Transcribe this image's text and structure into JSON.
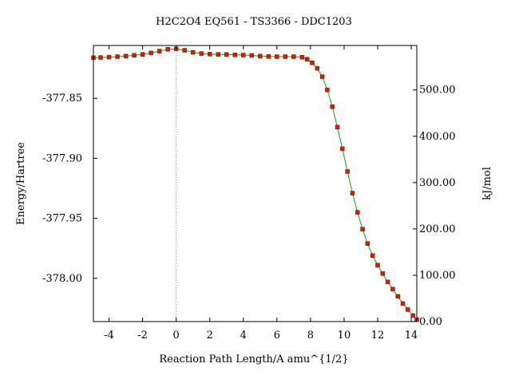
{
  "chart_data": {
    "type": "line",
    "title": "H2C2O4    EQ561 - TS3366 - DDC1203",
    "xlabel": "Reaction Path Length/A amu^{1/2}",
    "ylabel": "Energy/Hartree",
    "y2label": "kJ/mol",
    "xlim": [
      -4.93,
      14.33
    ],
    "ylim": [
      -378.036,
      -377.806
    ],
    "y2lim": [
      0,
      596
    ],
    "x_ticks": [
      -4,
      -2,
      0,
      2,
      4,
      6,
      8,
      10,
      12,
      14
    ],
    "x_tick_labels": [
      "-4",
      "-2",
      "0",
      "2",
      "4",
      "6",
      "8",
      "10",
      "12",
      "14"
    ],
    "y_ticks": [
      -377.85,
      -377.9,
      -377.95,
      -378.0
    ],
    "y_tick_labels": [
      "-377.85",
      "-377.90",
      "-377.95",
      "-378.00"
    ],
    "y2_ticks": [
      0,
      100,
      200,
      300,
      400,
      500
    ],
    "y2_tick_labels": [
      "0.00",
      "100.00",
      "200.00",
      "300.00",
      "400.00",
      "500.00"
    ],
    "ts_marker_x": 0,
    "grid": false,
    "colors": {
      "line": "#1a9a1a",
      "marker": "#cc2200",
      "ts_line": "#888888",
      "axis": "#000000"
    },
    "series": [
      {
        "x": [
          -4.93,
          -4.5,
          -4.0,
          -3.5,
          -3.0,
          -2.5,
          -2.0,
          -1.5,
          -1.0,
          -0.5,
          0.0,
          0.5,
          1.0,
          1.5,
          2.0,
          2.5,
          3.0,
          3.5,
          4.0,
          4.5,
          5.0,
          5.5,
          6.0,
          6.5,
          7.0,
          7.5,
          7.8,
          8.1,
          8.4,
          8.7,
          9.0,
          9.3,
          9.6,
          9.9,
          10.2,
          10.5,
          10.8,
          11.1,
          11.4,
          11.7,
          12.0,
          12.3,
          12.6,
          12.9,
          13.2,
          13.5,
          13.8,
          14.1,
          14.33
        ],
        "y": [
          -377.8162,
          -377.816,
          -377.8157,
          -377.8153,
          -377.8148,
          -377.8142,
          -377.8134,
          -377.8122,
          -377.8107,
          -377.8092,
          -377.8088,
          -377.81,
          -377.8117,
          -377.8127,
          -377.8132,
          -377.8134,
          -377.8135,
          -377.8138,
          -377.814,
          -377.8143,
          -377.8148,
          -377.8152,
          -377.8153,
          -377.8153,
          -377.8153,
          -377.8158,
          -377.8175,
          -377.8205,
          -377.825,
          -377.832,
          -377.843,
          -377.857,
          -377.874,
          -377.892,
          -377.911,
          -377.929,
          -377.945,
          -377.959,
          -377.971,
          -377.981,
          -377.989,
          -377.996,
          -378.003,
          -378.009,
          -378.015,
          -378.021,
          -378.026,
          -378.031,
          -378.0345
        ]
      }
    ]
  }
}
